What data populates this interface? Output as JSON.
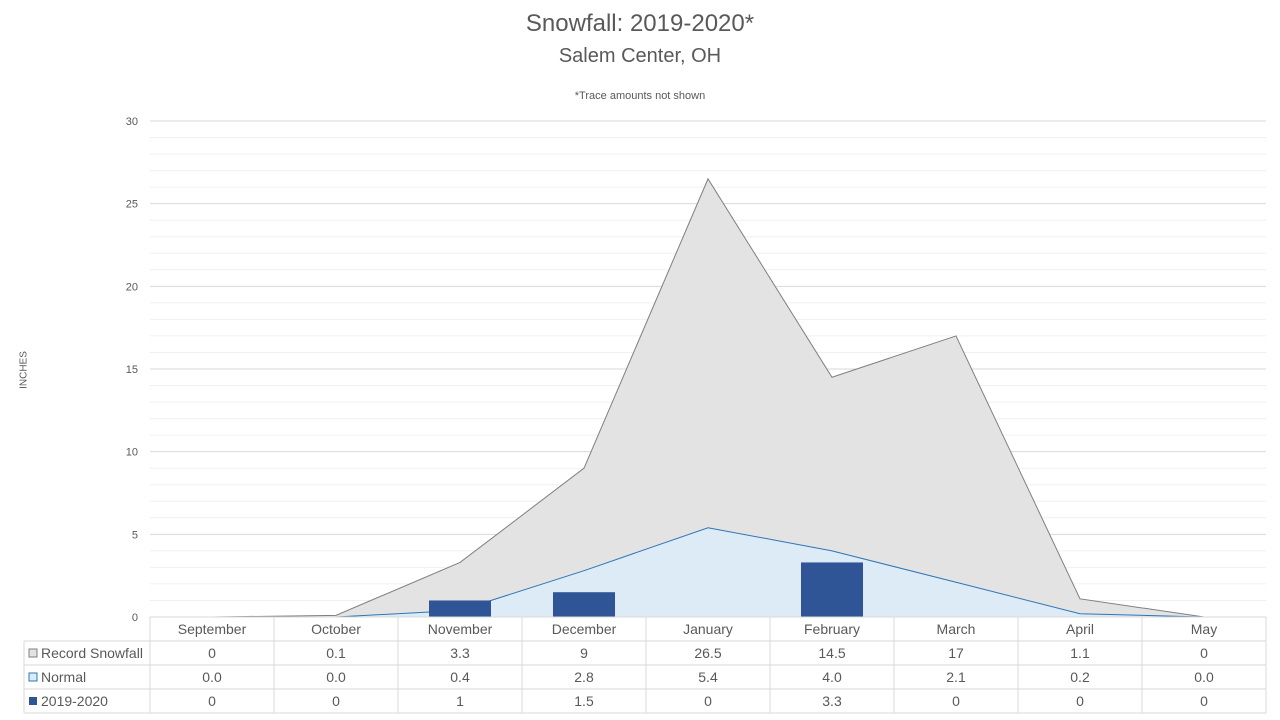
{
  "chart_data": {
    "type": "area",
    "title": "Snowfall: 2019-2020*",
    "subtitle": "Salem Center, OH",
    "note": "*Trace amounts not shown",
    "ylabel": "INCHES",
    "ylim": [
      0,
      30
    ],
    "yticks": [
      0,
      5,
      10,
      15,
      20,
      25,
      30
    ],
    "categories": [
      "September",
      "October",
      "November",
      "December",
      "January",
      "February",
      "March",
      "April",
      "May"
    ],
    "series": [
      {
        "name": "Record Snowfall",
        "kind": "area",
        "color": "#e3e3e3",
        "line_color": "#7f7f7f",
        "values": [
          0,
          0.1,
          3.3,
          9,
          26.5,
          14.5,
          17,
          1.1,
          0
        ],
        "labels": [
          "0",
          "0.1",
          "3.3",
          "9",
          "26.5",
          "14.5",
          "17",
          "1.1",
          "0"
        ]
      },
      {
        "name": "Normal",
        "kind": "area",
        "color": "#ddebf7",
        "line_color": "#2e75b6",
        "values": [
          0.0,
          0.0,
          0.4,
          2.8,
          5.4,
          4.0,
          2.1,
          0.2,
          0.0
        ],
        "labels": [
          "0.0",
          "0.0",
          "0.4",
          "2.8",
          "5.4",
          "4.0",
          "2.1",
          "0.2",
          "0.0"
        ]
      },
      {
        "name": "2019-2020",
        "kind": "bar",
        "color": "#2f5597",
        "values": [
          0,
          0,
          1,
          1.5,
          0,
          3.3,
          0,
          0,
          0
        ],
        "labels": [
          "0",
          "0",
          "1",
          "1.5",
          "0",
          "3.3",
          "0",
          "0",
          "0"
        ]
      }
    ],
    "grid": true,
    "legend": "data-table"
  }
}
